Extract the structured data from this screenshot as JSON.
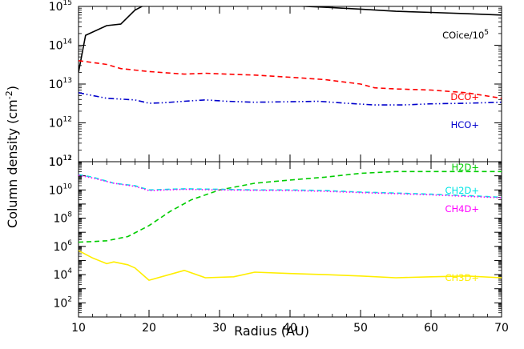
{
  "chart_data": [
    {
      "type": "line",
      "panel": "top",
      "ylog": true,
      "xlim": [
        10,
        70
      ],
      "ylim_exp": [
        11,
        15
      ],
      "y_tick_exponents": [
        11,
        12,
        13,
        14,
        15
      ],
      "series": [
        {
          "name": "COice/10",
          "name_sup": "5",
          "color": "#000000",
          "dash": "solid",
          "x": [
            10,
            11,
            14,
            16,
            18,
            20,
            25,
            28,
            31,
            35,
            40,
            45,
            50,
            55,
            60,
            65,
            70
          ],
          "y": [
            20000000000000.0,
            180000000000000.0,
            320000000000000.0,
            350000000000000.0,
            800000000000000.0,
            1250000000000000.0,
            1300000000000000.0,
            1300000000000000.0,
            1100000000000000.0,
            1150000000000000.0,
            1050000000000000.0,
            950000000000000.0,
            850000000000000.0,
            750000000000000.0,
            700000000000000.0,
            650000000000000.0,
            600000000000000.0
          ]
        },
        {
          "name": "DCO+",
          "color": "#ff0000",
          "dash": "dashed",
          "x": [
            10,
            11,
            14,
            16,
            20,
            25,
            28,
            31,
            35,
            40,
            45,
            50,
            52,
            55,
            60,
            65,
            70
          ],
          "y": [
            40000000000000.0,
            38000000000000.0,
            32000000000000.0,
            25000000000000.0,
            21000000000000.0,
            18000000000000.0,
            19000000000000.0,
            18000000000000.0,
            17000000000000.0,
            15000000000000.0,
            13000000000000.0,
            10000000000000.0,
            8000000000000.0,
            7500000000000.0,
            7000000000000.0,
            6000000000000.0,
            4300000000000.0
          ]
        },
        {
          "name": "HCO+",
          "color": "#0000cc",
          "dash": "dashdotdot",
          "x": [
            10,
            11,
            14,
            16,
            18,
            20,
            22,
            25,
            28,
            31,
            35,
            40,
            44,
            48,
            52,
            56,
            60,
            65,
            70
          ],
          "y": [
            6000000000000.0,
            5500000000000.0,
            4300000000000.0,
            4100000000000.0,
            3900000000000.0,
            3200000000000.0,
            3300000000000.0,
            3600000000000.0,
            3900000000000.0,
            3600000000000.0,
            3400000000000.0,
            3500000000000.0,
            3600000000000.0,
            3200000000000.0,
            2900000000000.0,
            2900000000000.0,
            3100000000000.0,
            3200000000000.0,
            3400000000000.0
          ]
        }
      ]
    },
    {
      "type": "line",
      "panel": "bottom",
      "ylog": true,
      "xlim": [
        10,
        70
      ],
      "ylim_exp": [
        1,
        12
      ],
      "y_tick_exponents": [
        2,
        4,
        6,
        8,
        10,
        12
      ],
      "xlabel": "Radius (AU)",
      "x_ticks": [
        "10",
        "20",
        "30",
        "40",
        "50",
        "60",
        "70"
      ],
      "series": [
        {
          "name": "H2D+",
          "color": "#00cc00",
          "dash": "dashed",
          "x": [
            10,
            12,
            14,
            17,
            20,
            23,
            26,
            30,
            35,
            40,
            45,
            50,
            55,
            60,
            65,
            70
          ],
          "y": [
            2000000.0,
            2200000.0,
            2500000.0,
            5000000.0,
            30000000.0,
            300000000.0,
            2000000000.0,
            10000000000.0,
            30000000000.0,
            50000000000.0,
            80000000000.0,
            150000000000.0,
            200000000000.0,
            200000000000.0,
            200000000000.0,
            200000000000.0
          ]
        },
        {
          "name": "CH2D+",
          "color": "#00e5e5",
          "dash": "dashed",
          "x": [
            10,
            12,
            15,
            18,
            20,
            25,
            30,
            35,
            40,
            45,
            50,
            55,
            60,
            65,
            70
          ],
          "y": [
            120000000000.0,
            80000000000.0,
            30000000000.0,
            20000000000.0,
            10000000000.0,
            12000000000.0,
            11000000000.0,
            10000000000.0,
            10000000000.0,
            9000000000.0,
            7000000000.0,
            6000000000.0,
            5000000000.0,
            4000000000.0,
            3000000000.0
          ]
        },
        {
          "name": "CH4D+",
          "color": "#ff00ff",
          "dash": "dotted",
          "x": [
            10,
            12,
            15,
            18,
            20,
            25,
            30,
            35,
            40,
            45,
            50,
            55,
            60,
            65,
            70
          ],
          "y": [
            110000000000.0,
            70000000000.0,
            30000000000.0,
            18000000000.0,
            9000000000.0,
            11000000000.0,
            10000000000.0,
            9500000000.0,
            9000000000.0,
            8000000000.0,
            6500000000.0,
            5500000000.0,
            4500000000.0,
            3500000000.0,
            2800000000.0
          ]
        },
        {
          "name": "CH3D+",
          "color": "#ffee00",
          "dash": "solid",
          "x": [
            10,
            12,
            14,
            15,
            17,
            18,
            20,
            25,
            28,
            32,
            35,
            40,
            45,
            50,
            55,
            60,
            65,
            70
          ],
          "y": [
            500000.0,
            150000.0,
            60000.0,
            80000.0,
            50000.0,
            30000.0,
            4000.0,
            20000.0,
            6000.0,
            7000.0,
            15000.0,
            12000.0,
            10000.0,
            8000.0,
            6000.0,
            7000.0,
            8000.0,
            6000.0
          ]
        }
      ]
    }
  ],
  "ylabel": "Column density (cm",
  "ylabel_sup": "-2",
  "ylabel_close": ")"
}
